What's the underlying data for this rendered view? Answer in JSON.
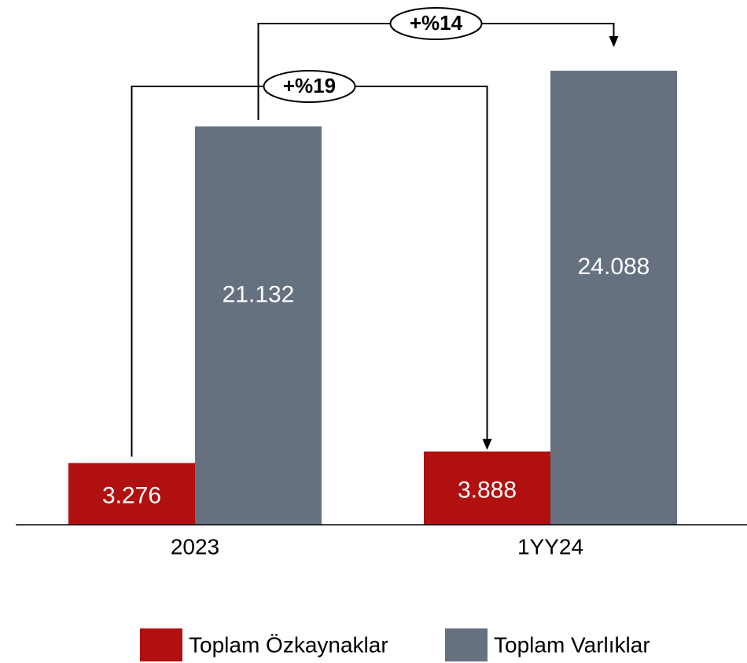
{
  "chart_data": {
    "type": "bar",
    "categories": [
      "2023",
      "1YY24"
    ],
    "series": [
      {
        "name": "Toplam Özkaynaklar",
        "color": "#b01010",
        "values": [
          3276,
          3888
        ],
        "value_labels": [
          "3.276",
          "3.888"
        ]
      },
      {
        "name": "Toplam Varlıklar",
        "color": "#667180",
        "values": [
          21132,
          24088
        ],
        "value_labels": [
          "21.132",
          "24.088"
        ]
      }
    ],
    "annotations": [
      "+%19",
      "+%14"
    ],
    "legend": "bottom"
  }
}
